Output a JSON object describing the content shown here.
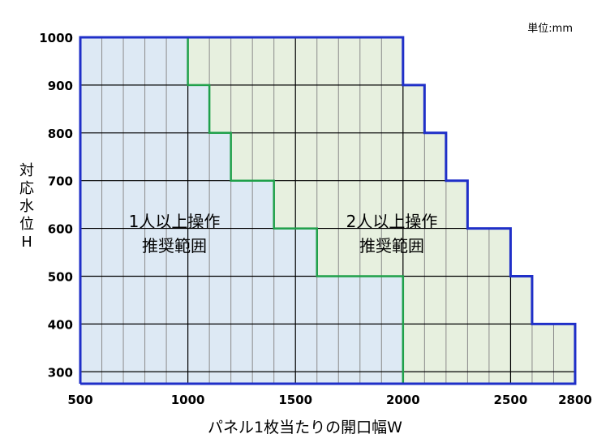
{
  "unit_label": "単位:mm",
  "y_axis_label": "対応水位H",
  "x_axis_label": "パネル1枚当たりの開口幅W",
  "regions": {
    "one_person": [
      "1人以上操作",
      "推奨範囲"
    ],
    "two_person": [
      "2人以上操作",
      "推奨範囲"
    ]
  },
  "colors": {
    "one_person_fill": "#dde9f4",
    "two_person_fill": "#e7f0df",
    "outer_border": "#1f2fc8",
    "boundary_line": "#1fa04a",
    "grid_major": "#000000",
    "grid_minor": "#8c8c8c"
  },
  "chart_data": {
    "type": "area",
    "xlim": [
      500,
      2800
    ],
    "ylim": [
      275,
      1000
    ],
    "x_ticks": [
      500,
      1000,
      1500,
      2000,
      2500,
      2800
    ],
    "y_ticks": [
      300,
      400,
      500,
      600,
      700,
      800,
      900,
      1000
    ],
    "x_minor_step": 100,
    "grid": true,
    "one_person_boundary": [
      {
        "x": 1000,
        "y": 1000
      },
      {
        "x": 1000,
        "y": 900
      },
      {
        "x": 1100,
        "y": 900
      },
      {
        "x": 1100,
        "y": 800
      },
      {
        "x": 1200,
        "y": 800
      },
      {
        "x": 1200,
        "y": 700
      },
      {
        "x": 1400,
        "y": 700
      },
      {
        "x": 1400,
        "y": 600
      },
      {
        "x": 1600,
        "y": 600
      },
      {
        "x": 1600,
        "y": 500
      },
      {
        "x": 2000,
        "y": 500
      },
      {
        "x": 2000,
        "y": 275
      }
    ],
    "two_person_boundary": [
      {
        "x": 2000,
        "y": 1000
      },
      {
        "x": 2000,
        "y": 900
      },
      {
        "x": 2100,
        "y": 900
      },
      {
        "x": 2100,
        "y": 800
      },
      {
        "x": 2200,
        "y": 800
      },
      {
        "x": 2200,
        "y": 700
      },
      {
        "x": 2300,
        "y": 700
      },
      {
        "x": 2300,
        "y": 600
      },
      {
        "x": 2500,
        "y": 600
      },
      {
        "x": 2500,
        "y": 500
      },
      {
        "x": 2600,
        "y": 500
      },
      {
        "x": 2600,
        "y": 400
      },
      {
        "x": 2800,
        "y": 400
      },
      {
        "x": 2800,
        "y": 275
      }
    ]
  }
}
